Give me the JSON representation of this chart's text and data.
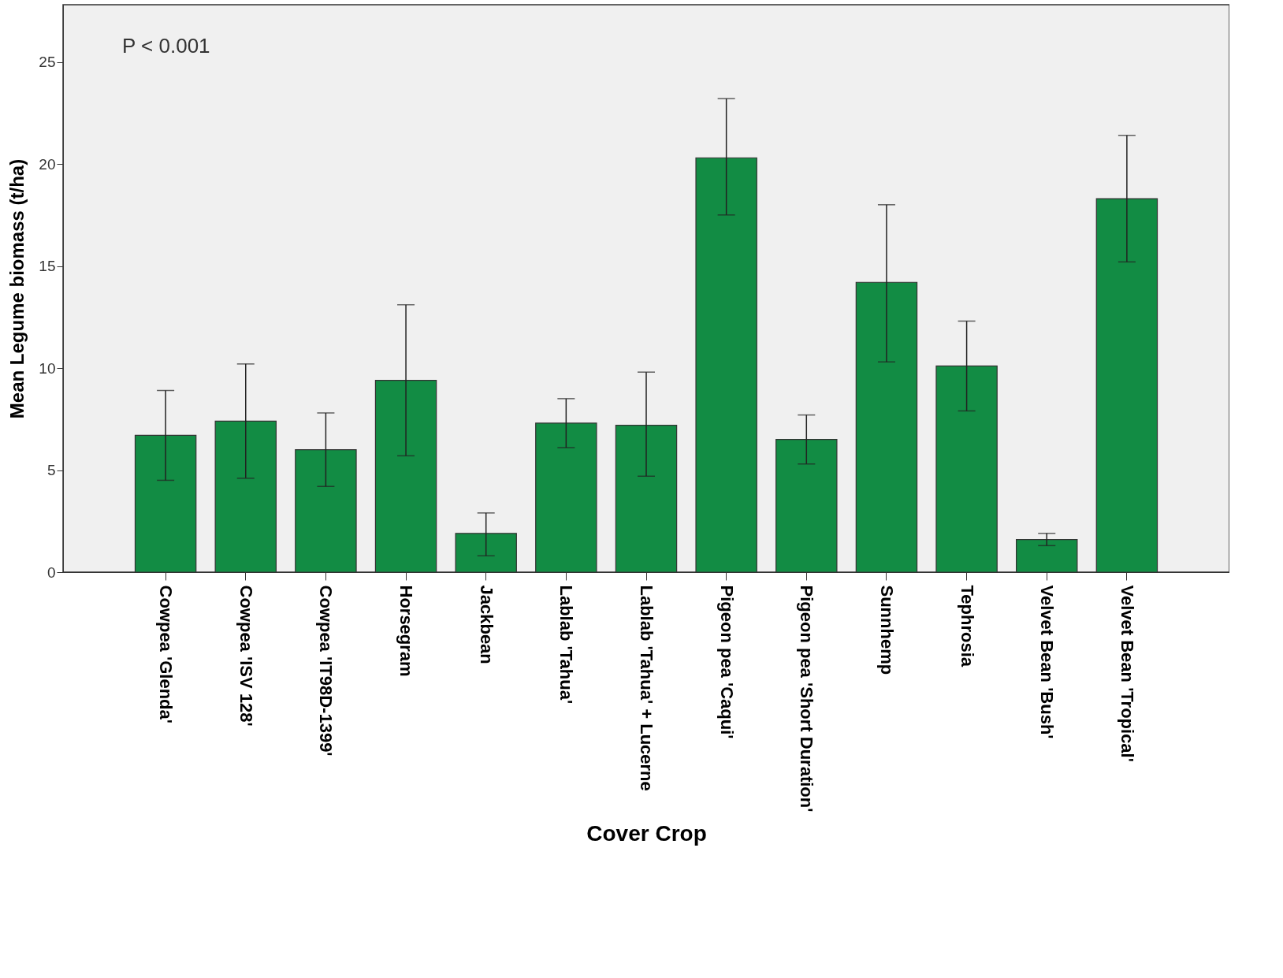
{
  "chart_data": {
    "type": "bar",
    "xlabel": "Cover Crop",
    "ylabel": "Mean Legume biomass (t/ha)",
    "categories": [
      "Cowpea 'Glenda'",
      "Cowpea 'ISV 128'",
      "Cowpea 'IT98D-1399'",
      "Horsegram",
      "Jackbean",
      "Lablab 'Tahua'",
      "Lablab 'Tahua' + Lucerne",
      "Pigeon pea 'Caqui'",
      "Pigeon pea 'Short Duration'",
      "Sunnhemp",
      "Tephrosia",
      "Velvet Bean 'Bush'",
      "Velvet Bean 'Tropical'"
    ],
    "values": [
      6.7,
      7.4,
      6.0,
      9.4,
      1.9,
      7.3,
      7.2,
      20.3,
      6.5,
      14.2,
      10.1,
      1.6,
      18.3
    ],
    "errors": [
      [
        4.5,
        8.9
      ],
      [
        4.6,
        10.2
      ],
      [
        4.2,
        7.8
      ],
      [
        5.7,
        13.1
      ],
      [
        0.8,
        2.9
      ],
      [
        6.1,
        8.5
      ],
      [
        4.7,
        9.8
      ],
      [
        17.5,
        23.2
      ],
      [
        5.3,
        7.7
      ],
      [
        10.3,
        18.0
      ],
      [
        7.9,
        12.3
      ],
      [
        1.3,
        1.9
      ],
      [
        15.2,
        21.4
      ]
    ],
    "color": "#128c44",
    "ylim": [
      0,
      27.8
    ],
    "yticks": [
      0,
      5,
      10,
      15,
      20,
      25
    ],
    "grid": false,
    "annotations": [
      "P < 0.001"
    ]
  }
}
